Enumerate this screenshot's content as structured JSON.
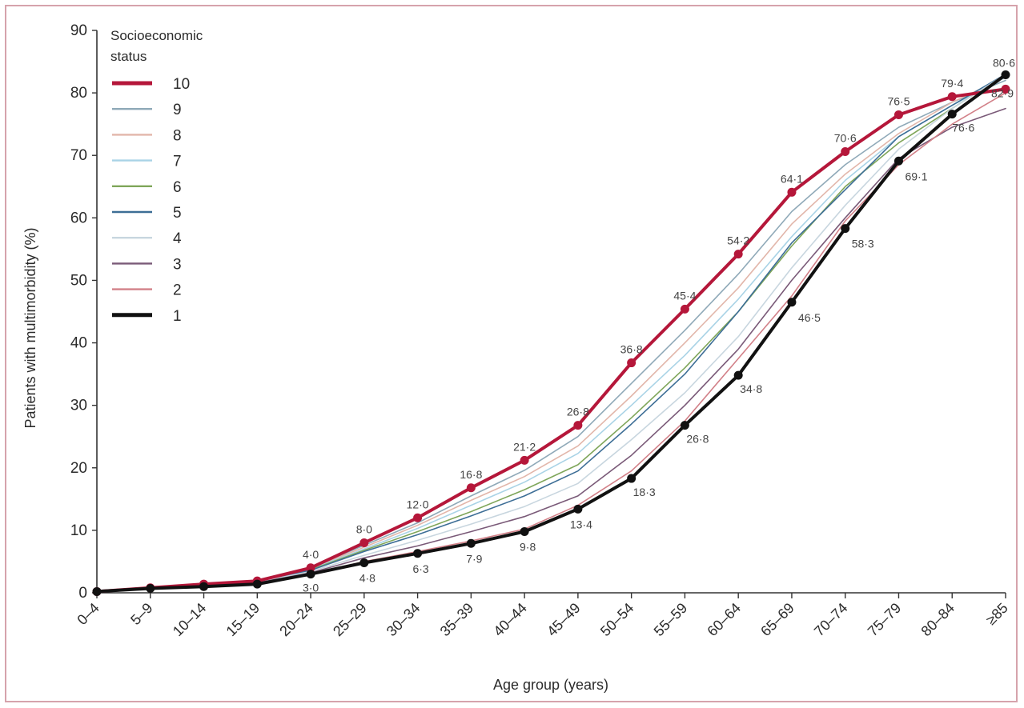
{
  "chart_data": {
    "type": "line",
    "xlabel": "Age group (years)",
    "ylabel": "Patients with multimorbidity (%)",
    "ylim": [
      0,
      90
    ],
    "yticks": [
      "0",
      "10",
      "20",
      "30",
      "40",
      "50",
      "60",
      "70",
      "80",
      "90"
    ],
    "categories": [
      "0–4",
      "5–9",
      "10–14",
      "15–19",
      "20–24",
      "25–29",
      "30–34",
      "35–39",
      "40–44",
      "45–49",
      "50–54",
      "55–59",
      "60–64",
      "65–69",
      "70–74",
      "75–79",
      "80–84",
      "≥85"
    ],
    "legend": {
      "title": "Socioeconomic status",
      "position": "top-left"
    },
    "grid": false,
    "series": [
      {
        "name": "10",
        "color": "#b5173a",
        "width": 4,
        "markers": true,
        "values": [
          0.2,
          0.8,
          1.4,
          1.9,
          4.0,
          8.0,
          12.0,
          16.8,
          21.2,
          26.8,
          36.8,
          45.4,
          54.2,
          64.1,
          70.6,
          76.5,
          79.4,
          80.6
        ]
      },
      {
        "name": "9",
        "color": "#8fa9b8",
        "width": 1.6,
        "markers": false,
        "values": [
          0.2,
          0.8,
          1.4,
          1.9,
          4.0,
          7.6,
          11.2,
          15.5,
          19.6,
          25.0,
          33.5,
          42.0,
          51.0,
          61.0,
          68.5,
          74.5,
          78.5,
          82.0
        ]
      },
      {
        "name": "8",
        "color": "#e2b6aa",
        "width": 1.6,
        "markers": false,
        "values": [
          0.2,
          0.8,
          1.3,
          1.8,
          3.9,
          7.3,
          10.8,
          14.8,
          18.6,
          23.5,
          31.5,
          40.0,
          48.8,
          59.0,
          67.0,
          73.5,
          78.5,
          82.5
        ]
      },
      {
        "name": "7",
        "color": "#a9d3e6",
        "width": 1.6,
        "markers": false,
        "values": [
          0.2,
          0.8,
          1.3,
          1.8,
          3.8,
          7.0,
          10.3,
          14.0,
          17.7,
          22.3,
          30.0,
          38.0,
          47.0,
          57.0,
          66.0,
          73.0,
          78.0,
          82.5
        ]
      },
      {
        "name": "6",
        "color": "#7fa65a",
        "width": 1.6,
        "markers": false,
        "values": [
          0.2,
          0.8,
          1.3,
          1.8,
          3.7,
          6.8,
          9.8,
          13.0,
          16.5,
          20.5,
          28.0,
          36.0,
          45.0,
          55.5,
          65.0,
          72.0,
          77.5,
          83.0
        ]
      },
      {
        "name": "5",
        "color": "#3d6e96",
        "width": 1.6,
        "markers": false,
        "values": [
          0.2,
          0.8,
          1.2,
          1.7,
          3.6,
          6.6,
          9.3,
          12.3,
          15.5,
          19.5,
          27.0,
          35.0,
          45.0,
          56.0,
          64.5,
          73.0,
          78.0,
          83.0
        ]
      },
      {
        "name": "4",
        "color": "#c8d6df",
        "width": 1.6,
        "markers": false,
        "values": [
          0.2,
          0.8,
          1.2,
          1.7,
          3.4,
          6.0,
          8.4,
          11.0,
          13.8,
          17.5,
          24.5,
          32.0,
          41.0,
          52.0,
          62.0,
          71.0,
          77.5,
          83.0
        ]
      },
      {
        "name": "3",
        "color": "#7a5a78",
        "width": 1.6,
        "markers": false,
        "values": [
          0.2,
          0.8,
          1.2,
          1.6,
          3.2,
          5.6,
          7.5,
          9.8,
          12.2,
          15.5,
          22.0,
          30.0,
          39.0,
          50.0,
          60.0,
          69.5,
          74.5,
          77.5
        ]
      },
      {
        "name": "2",
        "color": "#d28088",
        "width": 1.6,
        "markers": false,
        "values": [
          0.2,
          0.8,
          1.1,
          1.5,
          3.0,
          5.0,
          6.6,
          8.3,
          10.2,
          14.0,
          19.5,
          27.5,
          37.5,
          47.5,
          59.5,
          68.5,
          75.0,
          80.0
        ]
      },
      {
        "name": "1",
        "color": "#111111",
        "width": 4,
        "markers": true,
        "values": [
          0.2,
          0.7,
          1.0,
          1.4,
          3.0,
          4.8,
          6.3,
          7.9,
          9.8,
          13.4,
          18.3,
          26.8,
          34.8,
          46.5,
          58.3,
          69.1,
          76.6,
          82.9
        ]
      }
    ],
    "data_labels": [
      {
        "series": "10",
        "index": 4,
        "text": "4·0"
      },
      {
        "series": "10",
        "index": 5,
        "text": "8·0"
      },
      {
        "series": "10",
        "index": 6,
        "text": "12·0"
      },
      {
        "series": "10",
        "index": 7,
        "text": "16·8"
      },
      {
        "series": "10",
        "index": 8,
        "text": "21·2"
      },
      {
        "series": "10",
        "index": 9,
        "text": "26·8"
      },
      {
        "series": "10",
        "index": 10,
        "text": "36·8"
      },
      {
        "series": "10",
        "index": 11,
        "text": "45·4"
      },
      {
        "series": "10",
        "index": 12,
        "text": "54·2"
      },
      {
        "series": "10",
        "index": 13,
        "text": "64·1"
      },
      {
        "series": "10",
        "index": 14,
        "text": "70·6"
      },
      {
        "series": "10",
        "index": 15,
        "text": "76·5"
      },
      {
        "series": "10",
        "index": 16,
        "text": "79·4"
      },
      {
        "series": "10",
        "index": 17,
        "text": "80·6"
      },
      {
        "series": "1",
        "index": 4,
        "text": "3·0"
      },
      {
        "series": "1",
        "index": 5,
        "text": "4·8"
      },
      {
        "series": "1",
        "index": 6,
        "text": "6·3"
      },
      {
        "series": "1",
        "index": 7,
        "text": "7·9"
      },
      {
        "series": "1",
        "index": 8,
        "text": "9·8"
      },
      {
        "series": "1",
        "index": 9,
        "text": "13·4"
      },
      {
        "series": "1",
        "index": 10,
        "text": "18·3"
      },
      {
        "series": "1",
        "index": 11,
        "text": "26·8"
      },
      {
        "series": "1",
        "index": 12,
        "text": "34·8"
      },
      {
        "series": "1",
        "index": 13,
        "text": "46·5"
      },
      {
        "series": "1",
        "index": 14,
        "text": "58·3"
      },
      {
        "series": "1",
        "index": 15,
        "text": "69·1"
      },
      {
        "series": "1",
        "index": 16,
        "text": "76·6"
      },
      {
        "series": "1",
        "index": 17,
        "text": "82·9"
      }
    ]
  }
}
